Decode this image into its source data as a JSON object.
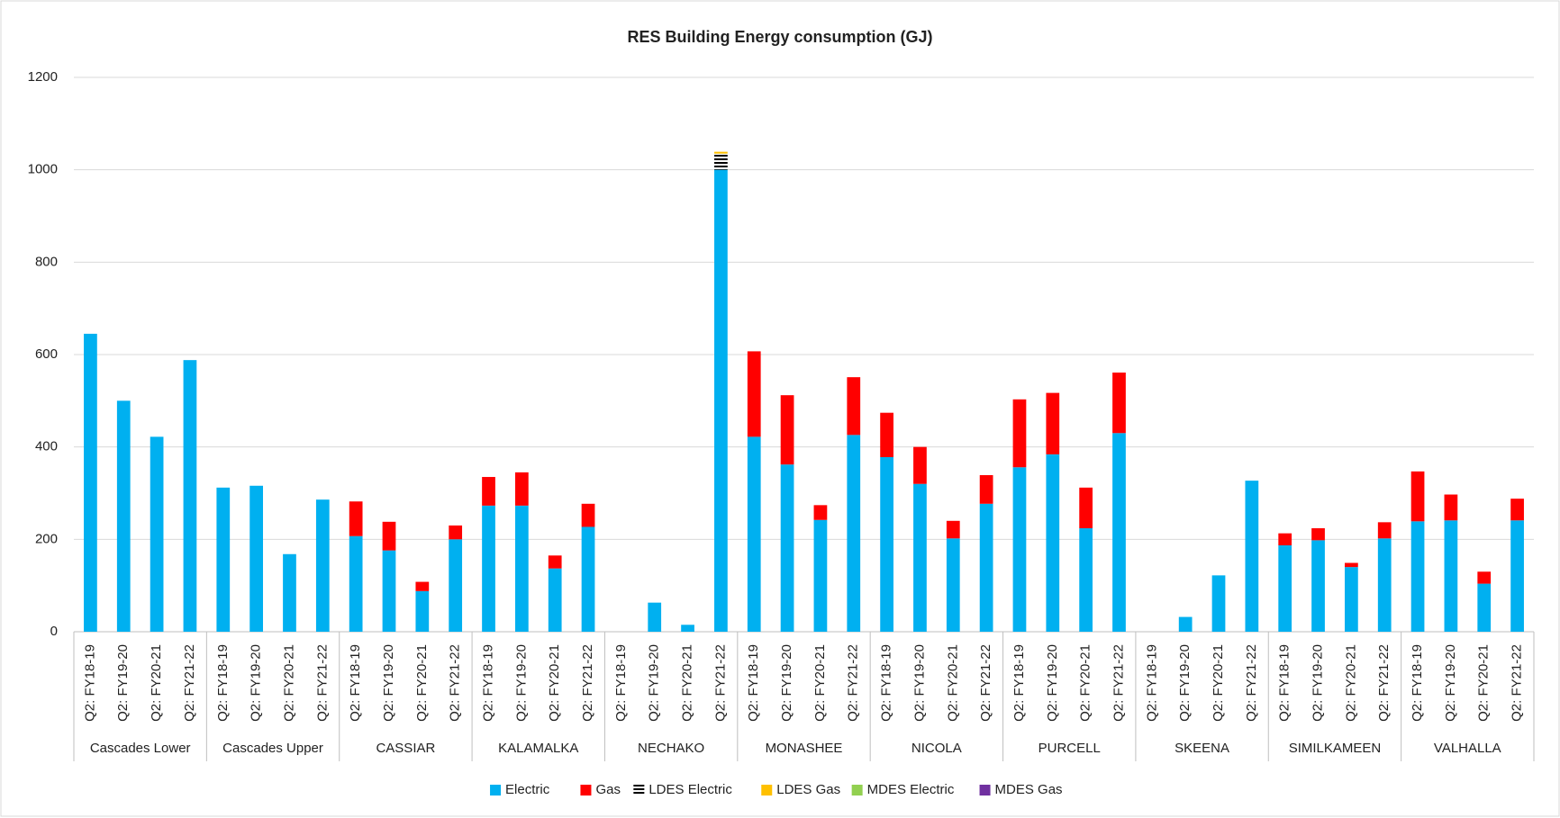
{
  "chart_data": {
    "type": "stacked-bar",
    "title": "RES Building Energy consumption (GJ)",
    "groups": [
      "Cascades Lower",
      "Cascades Upper",
      "CASSIAR",
      "KALAMALKA",
      "NECHAKO",
      "MONASHEE",
      "NICOLA",
      "PURCELL",
      "SKEENA",
      "SIMILKAMEEN",
      "VALHALLA"
    ],
    "categories": [
      "Q2: FY18-19",
      "Q2: FY19-20",
      "Q2: FY20-21",
      "Q2: FY21-22",
      "Q2: FY18-19",
      "Q2: FY19-20",
      "Q2: FY20-21",
      "Q2: FY21-22",
      "Q2: FY18-19",
      "Q2: FY19-20",
      "Q2: FY20-21",
      "Q2: FY21-22",
      "Q2: FY18-19",
      "Q2: FY19-20",
      "Q2: FY20-21",
      "Q2: FY21-22",
      "Q2: FY18-19",
      "Q2: FY19-20",
      "Q2: FY20-21",
      "Q2: FY21-22",
      "Q2: FY18-19",
      "Q2: FY19-20",
      "Q2: FY20-21",
      "Q2: FY21-22",
      "Q2: FY18-19",
      "Q2: FY19-20",
      "Q2: FY20-21",
      "Q2: FY21-22",
      "Q2: FY18-19",
      "Q2: FY19-20",
      "Q2: FY20-21",
      "Q2: FY21-22",
      "Q2: FY18-19",
      "Q2: FY19-20",
      "Q2: FY20-21",
      "Q2: FY21-22",
      "Q2: FY18-19",
      "Q2: FY19-20",
      "Q2: FY20-21",
      "Q2: FY21-22",
      "Q2: FY18-19",
      "Q2: FY19-20",
      "Q2: FY20-21",
      "Q2: FY21-22"
    ],
    "series": [
      {
        "name": "Electric",
        "color": "#00b0f0",
        "values": [
          645,
          500,
          422,
          588,
          312,
          316,
          168,
          286,
          207,
          176,
          88,
          200,
          273,
          273,
          137,
          227,
          0,
          63,
          15,
          1000,
          422,
          362,
          242,
          426,
          378,
          320,
          202,
          277,
          356,
          384,
          224,
          430,
          0,
          32,
          122,
          327,
          187,
          198,
          140,
          202,
          239,
          241,
          104,
          241
        ]
      },
      {
        "name": "Gas",
        "color": "#ff0000",
        "values": [
          0,
          0,
          0,
          0,
          0,
          0,
          0,
          0,
          75,
          62,
          20,
          30,
          62,
          72,
          28,
          50,
          0,
          0,
          0,
          0,
          185,
          150,
          32,
          125,
          96,
          80,
          38,
          62,
          147,
          133,
          88,
          131,
          0,
          0,
          0,
          0,
          26,
          26,
          9,
          35,
          108,
          56,
          26,
          47
        ]
      },
      {
        "name": "LDES Electric",
        "color": "#000000",
        "hatch": true,
        "values": [
          0,
          0,
          0,
          0,
          0,
          0,
          0,
          0,
          0,
          0,
          0,
          0,
          0,
          0,
          0,
          0,
          0,
          0,
          0,
          35,
          0,
          0,
          0,
          0,
          0,
          0,
          0,
          0,
          0,
          0,
          0,
          0,
          0,
          0,
          0,
          0,
          0,
          0,
          0,
          0,
          0,
          0,
          0,
          0
        ]
      },
      {
        "name": "LDES Gas",
        "color": "#ffc000",
        "values": [
          0,
          0,
          0,
          0,
          0,
          0,
          0,
          0,
          0,
          0,
          0,
          0,
          0,
          0,
          0,
          0,
          0,
          0,
          0,
          4,
          0,
          0,
          0,
          0,
          0,
          0,
          0,
          0,
          0,
          0,
          0,
          0,
          0,
          0,
          0,
          0,
          0,
          0,
          0,
          0,
          0,
          0,
          0,
          0
        ]
      },
      {
        "name": "MDES Electric",
        "color": "#92d050",
        "values": [
          0,
          0,
          0,
          0,
          0,
          0,
          0,
          0,
          0,
          0,
          0,
          0,
          0,
          0,
          0,
          0,
          0,
          0,
          0,
          0,
          0,
          0,
          0,
          0,
          0,
          0,
          0,
          0,
          0,
          0,
          0,
          0,
          0,
          0,
          0,
          0,
          0,
          0,
          0,
          0,
          0,
          0,
          0,
          0
        ]
      },
      {
        "name": "MDES Gas",
        "color": "#7030a0",
        "values": [
          0,
          0,
          0,
          0,
          0,
          0,
          0,
          0,
          0,
          0,
          0,
          0,
          0,
          0,
          0,
          0,
          0,
          0,
          0,
          0,
          0,
          0,
          0,
          0,
          0,
          0,
          0,
          0,
          0,
          0,
          0,
          0,
          0,
          0,
          0,
          0,
          0,
          0,
          0,
          0,
          0,
          0,
          0,
          0
        ]
      }
    ],
    "ylim": [
      0,
      1200
    ],
    "yticks": [
      0,
      200,
      400,
      600,
      800,
      1000,
      1200
    ],
    "grid": true,
    "legend": "bottom"
  }
}
